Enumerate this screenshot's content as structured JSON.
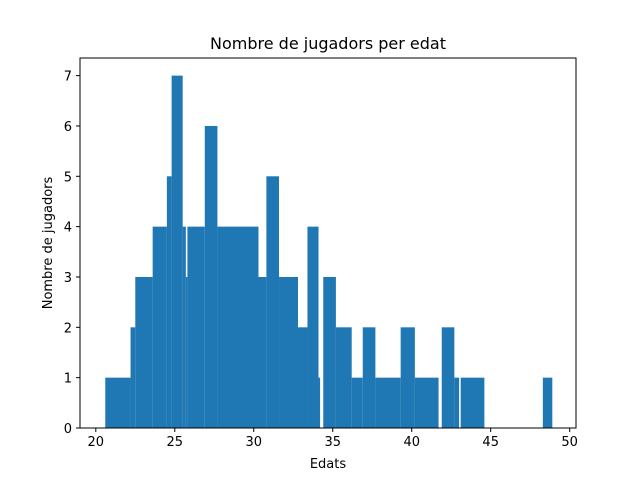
{
  "chart_data": {
    "type": "bar",
    "title": "Nombre de jugadors per edat",
    "xlabel": "Edats",
    "ylabel": "Nombre de jugadors",
    "xlim": [
      19,
      50.4
    ],
    "ylim": [
      0,
      7.35
    ],
    "xticks": [
      20,
      25,
      30,
      35,
      40,
      45,
      50
    ],
    "yticks": [
      0,
      1,
      2,
      3,
      4,
      5,
      6,
      7
    ],
    "bar_color": "#1f77b4",
    "grid": false,
    "legend": "none",
    "bins": [
      {
        "x0": 20.6,
        "x1": 22.2,
        "count": 1
      },
      {
        "x0": 22.2,
        "x1": 22.5,
        "count": 2
      },
      {
        "x0": 22.5,
        "x1": 23.6,
        "count": 3
      },
      {
        "x0": 23.6,
        "x1": 24.5,
        "count": 4
      },
      {
        "x0": 24.5,
        "x1": 24.8,
        "count": 5
      },
      {
        "x0": 24.8,
        "x1": 25.5,
        "count": 7
      },
      {
        "x0": 25.5,
        "x1": 25.7,
        "count": 4
      },
      {
        "x0": 25.7,
        "x1": 25.8,
        "count": 3
      },
      {
        "x0": 25.8,
        "x1": 26.9,
        "count": 4
      },
      {
        "x0": 26.9,
        "x1": 27.7,
        "count": 6
      },
      {
        "x0": 27.7,
        "x1": 30.3,
        "count": 4
      },
      {
        "x0": 30.3,
        "x1": 30.8,
        "count": 3
      },
      {
        "x0": 30.8,
        "x1": 31.6,
        "count": 5
      },
      {
        "x0": 31.6,
        "x1": 32.8,
        "count": 3
      },
      {
        "x0": 32.8,
        "x1": 33.4,
        "count": 2
      },
      {
        "x0": 33.4,
        "x1": 34.1,
        "count": 4
      },
      {
        "x0": 34.1,
        "x1": 34.2,
        "count": 1
      },
      {
        "x0": 34.4,
        "x1": 35.2,
        "count": 3
      },
      {
        "x0": 35.2,
        "x1": 36.2,
        "count": 2
      },
      {
        "x0": 36.2,
        "x1": 36.9,
        "count": 1
      },
      {
        "x0": 36.9,
        "x1": 37.7,
        "count": 2
      },
      {
        "x0": 37.7,
        "x1": 39.3,
        "count": 1
      },
      {
        "x0": 39.3,
        "x1": 40.2,
        "count": 2
      },
      {
        "x0": 40.2,
        "x1": 41.7,
        "count": 1
      },
      {
        "x0": 41.9,
        "x1": 42.7,
        "count": 2
      },
      {
        "x0": 42.7,
        "x1": 43.0,
        "count": 1
      },
      {
        "x0": 43.1,
        "x1": 44.6,
        "count": 1
      },
      {
        "x0": 48.3,
        "x1": 48.9,
        "count": 1
      }
    ]
  }
}
